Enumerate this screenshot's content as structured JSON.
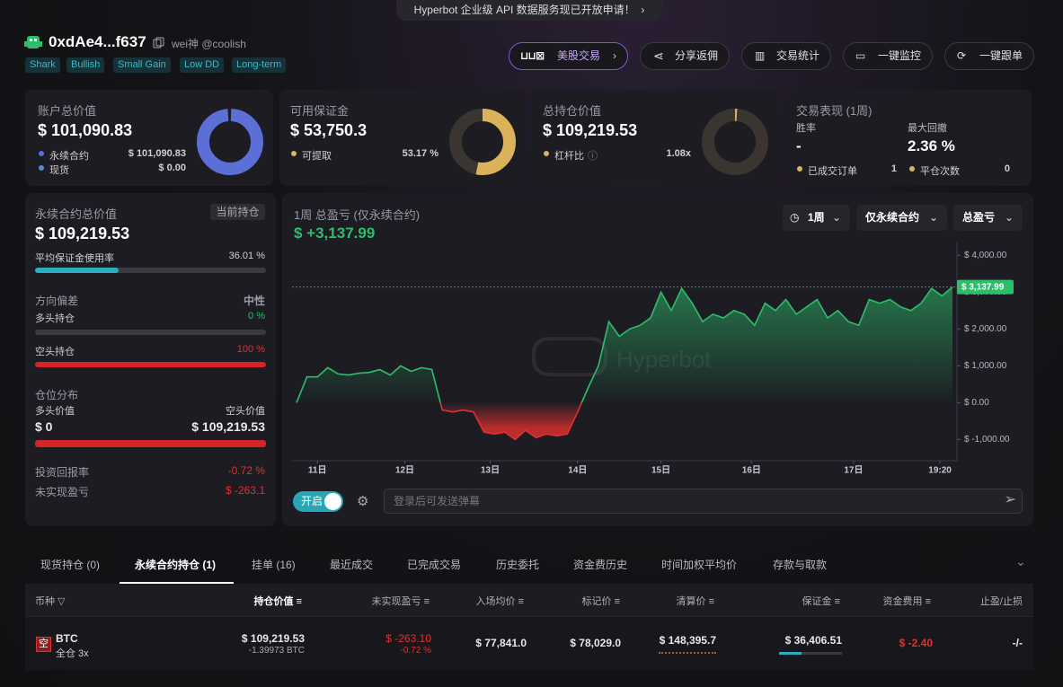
{
  "banner": "Hyperbot 企业级 API 数据服务现已开放申请！",
  "profile": {
    "address": "0xdAe4...f637",
    "handle": "wei神 @coolish",
    "tags": [
      "Shark",
      "Bullish",
      "Small Gain",
      "Low DD",
      "Long-term"
    ]
  },
  "actions": [
    "美股交易",
    "分享返佣",
    "交易统计",
    "一键监控",
    "一键跟单"
  ],
  "summary": {
    "account": {
      "title": "账户总价值",
      "value": "$ 101,090.83",
      "rows": [
        {
          "label": "永续合约",
          "value": "$ 101,090.83"
        },
        {
          "label": "现货",
          "value": "$ 0.00"
        }
      ]
    },
    "margin": {
      "title": "可用保证金",
      "value": "$ 53,750.3",
      "rows": [
        {
          "label": "可提取",
          "value": "53.17 %"
        }
      ]
    },
    "position": {
      "title": "总持仓价值",
      "value": "$ 109,219.53",
      "rows": [
        {
          "label": "杠杆比",
          "value": "1.08x"
        }
      ]
    },
    "performance": {
      "title": "交易表现 (1周)",
      "win_rate_label": "胜率",
      "win_rate": "-",
      "drawdown_label": "最大回撤",
      "drawdown": "2.36 %",
      "rows": [
        {
          "label": "已成交订单",
          "value": "1"
        },
        {
          "label": "平仓次数",
          "value": "0"
        }
      ]
    }
  },
  "perp": {
    "title": "永续合约总价值",
    "badge": "当前持仓",
    "value": "$ 109,219.53",
    "usage_label": "平均保证金使用率",
    "usage": "36.01 %",
    "bias_label": "方向偏差",
    "bias": "中性",
    "long_label": "多头持仓",
    "long": "0 %",
    "short_label": "空头持仓",
    "short": "100 %",
    "dist_label": "仓位分布",
    "long_value_label": "多头价值",
    "short_value_label": "空头价值",
    "long_value": "$ 0",
    "short_value": "$ 109,219.53",
    "roi_label": "投资回报率",
    "roi": "-0.72 %",
    "upnl_label": "未实现盈亏",
    "upnl": "$ -263.1"
  },
  "chart_data": {
    "type": "area",
    "title": "1周 总盈亏 (仅永续合约)",
    "total": "$ +3,137.99",
    "filters": [
      "1周",
      "仅永续合约",
      "总盈亏"
    ],
    "watermark": "Hyperbot",
    "values": [
      0,
      700,
      700,
      950,
      780,
      750,
      800,
      820,
      900,
      750,
      1000,
      850,
      950,
      900,
      -200,
      -250,
      -200,
      -250,
      -800,
      -850,
      -800,
      -1000,
      -750,
      -950,
      -850,
      -900,
      -850,
      -250,
      400,
      1000,
      2200,
      1800,
      2000,
      2100,
      2300,
      3000,
      2500,
      3100,
      2700,
      2200,
      2400,
      2300,
      2500,
      2400,
      2100,
      2700,
      2500,
      2800,
      2400,
      2600,
      2800,
      2300,
      2500,
      2200,
      2100,
      2800,
      2700,
      2800,
      2600,
      2500,
      2700,
      3100,
      2900,
      3137.99
    ],
    "last_label": "$ 3,137.99",
    "up_color": "#2ebd6b",
    "down_color": "#e0312f",
    "xlim": [
      0,
      63
    ],
    "xticks": [
      {
        "value": 2,
        "label": "11日"
      },
      {
        "value": 10.4,
        "label": "12日"
      },
      {
        "value": 18.6,
        "label": "13日"
      },
      {
        "value": 27,
        "label": "14日"
      },
      {
        "value": 35,
        "label": "15日"
      },
      {
        "value": 43.7,
        "label": "16日"
      },
      {
        "value": 53.5,
        "label": "17日"
      },
      {
        "value": 61.8,
        "label": "19:20"
      }
    ],
    "ylim": [
      -1550,
      4250
    ],
    "yticks": [
      {
        "value": -1000,
        "label": "$ -1,000.00"
      },
      {
        "value": 0,
        "label": "$ 0.00"
      },
      {
        "value": 1000,
        "label": "$ 1,000.00"
      },
      {
        "value": 2000,
        "label": "$ 2,000.00"
      },
      {
        "value": 3000,
        "label": "$ 3,000.00"
      },
      {
        "value": 4000,
        "label": "$ 4,000.00"
      }
    ]
  },
  "danmaku": {
    "toggle": "开启",
    "placeholder": "登录后可发送弹幕"
  },
  "tabs": {
    "items": [
      "现货持仓 (0)",
      "永续合约持仓 (1)",
      "挂单 (16)",
      "最近成交",
      "已完成交易",
      "历史委托",
      "资金费历史",
      "时间加权平均价",
      "存款与取款"
    ],
    "active": 1
  },
  "table": {
    "headers": [
      "币种",
      "持仓价值",
      "未实现盈亏",
      "入场均价",
      "标记价",
      "清算价",
      "保证金",
      "资金费用",
      "止盈/止损"
    ],
    "rows": [
      {
        "side": "空",
        "coin": "BTC",
        "mode": "全仓 3x",
        "value": "$ 109,219.53",
        "size": "-1.39973 BTC",
        "upnl": "$ -263.10",
        "roi": "-0.72 %",
        "entry": "$ 77,841.0",
        "mark": "$ 78,029.0",
        "liq": "$ 148,395.7",
        "margin": "$ 36,406.51",
        "funding": "$ -2.40",
        "tpsl": "-/-"
      }
    ]
  }
}
